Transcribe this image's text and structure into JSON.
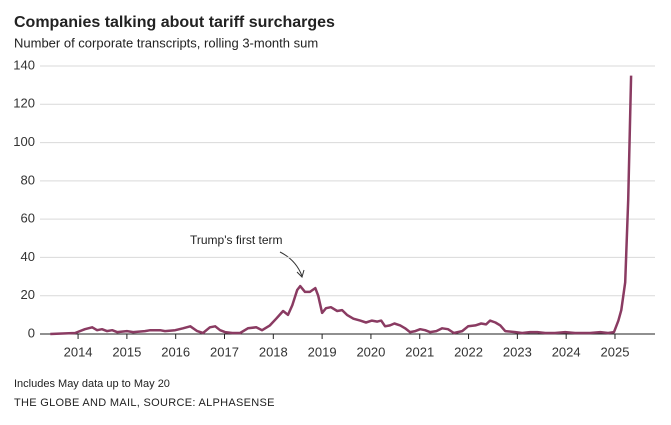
{
  "chart_data": {
    "type": "line",
    "title": "Companies talking about tariff surcharges",
    "subtitle": "Number of corporate transcripts, rolling 3-month sum",
    "annotation": "Trump's first term",
    "notes": "Includes May data up to May 20",
    "source": "THE GLOBE AND MAIL, SOURCE: ALPHASENSE",
    "x": [
      2013.43,
      2013.94,
      2014.14,
      2014.29,
      2014.39,
      2014.49,
      2014.59,
      2014.7,
      2014.8,
      2015.0,
      2015.13,
      2015.37,
      2015.48,
      2015.68,
      2015.78,
      2015.99,
      2016.15,
      2016.3,
      2016.44,
      2016.56,
      2016.7,
      2016.81,
      2016.91,
      2017.01,
      2017.16,
      2017.32,
      2017.48,
      2017.65,
      2017.77,
      2017.93,
      2018.06,
      2018.2,
      2018.3,
      2018.39,
      2018.49,
      2018.55,
      2018.65,
      2018.75,
      2018.86,
      2018.92,
      2019.0,
      2019.08,
      2019.18,
      2019.31,
      2019.41,
      2019.51,
      2019.64,
      2019.78,
      2019.9,
      2020.02,
      2020.13,
      2020.21,
      2020.29,
      2020.39,
      2020.48,
      2020.6,
      2020.7,
      2020.8,
      2020.91,
      2021.01,
      2021.11,
      2021.21,
      2021.34,
      2021.46,
      2021.58,
      2021.7,
      2021.87,
      2021.99,
      2022.14,
      2022.26,
      2022.36,
      2022.44,
      2022.55,
      2022.65,
      2022.75,
      2022.96,
      2023.1,
      2023.26,
      2023.41,
      2023.57,
      2023.77,
      2023.98,
      2024.18,
      2024.49,
      2024.7,
      2024.86,
      2024.98,
      2025.07,
      2025.13,
      2025.21,
      2025.27,
      2025.33
    ],
    "series": [
      {
        "name": "Transcripts",
        "color": "#8a3b62",
        "values": [
          0,
          0.5,
          2.5,
          3.5,
          2,
          2.5,
          1.5,
          2,
          1,
          1.5,
          1,
          1.5,
          2,
          2,
          1.5,
          2,
          3,
          4,
          1.5,
          0.5,
          3.5,
          4,
          2,
          1,
          0.5,
          0.5,
          3,
          3.5,
          2,
          4.5,
          8,
          12,
          10,
          15,
          23,
          25,
          22,
          22,
          24,
          20,
          11,
          13.5,
          14,
          12,
          12.5,
          10,
          8,
          7,
          6,
          7,
          6.5,
          7,
          4,
          4.5,
          5.5,
          4.5,
          3,
          1,
          1.5,
          2.5,
          2,
          1,
          1.5,
          3,
          2.5,
          0.5,
          1.5,
          4,
          4.5,
          5.5,
          5,
          7,
          6,
          4.5,
          1.5,
          1,
          0.5,
          1,
          1,
          0.5,
          0.5,
          1,
          0.5,
          0.5,
          1,
          0.5,
          1,
          7,
          12.5,
          27,
          70,
          135
        ]
      }
    ],
    "xlim": [
      2013.22,
      2025.82
    ],
    "xticks": [
      2014,
      2015,
      2016,
      2017,
      2018,
      2019,
      2020,
      2021,
      2022,
      2023,
      2024,
      2025
    ],
    "ylim": [
      0,
      140
    ],
    "yticks": [
      0,
      20,
      40,
      60,
      80,
      100,
      120,
      140
    ],
    "grid": true
  }
}
